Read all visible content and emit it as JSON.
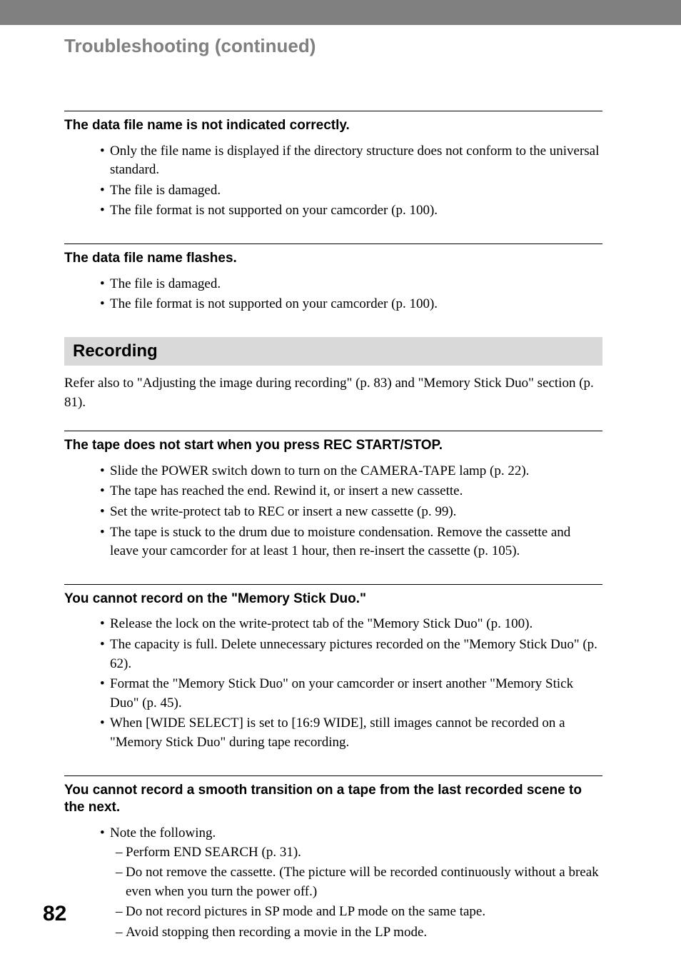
{
  "colors": {
    "topbar": "#808080",
    "chapter_title": "#808080",
    "section_bg": "#d9d9d9",
    "text": "#000000",
    "page_bg": "#ffffff"
  },
  "typography": {
    "body_font": "Times New Roman",
    "heading_font": "Arial",
    "chapter_title_size": 26,
    "section_header_size": 24,
    "issue_title_size": 19,
    "body_size": 19,
    "page_number_size": 30
  },
  "chapter_title": "Troubleshooting (continued)",
  "issues_top": [
    {
      "title": "The data file name is not indicated correctly.",
      "bullets": [
        "Only the file name is displayed if the directory structure does not conform to the universal standard.",
        "The file is damaged.",
        "The file format is not supported on your camcorder (p. 100)."
      ]
    },
    {
      "title": "The data file name flashes.",
      "bullets": [
        "The file is damaged.",
        "The file format is not supported on your camcorder (p. 100)."
      ]
    }
  ],
  "section": {
    "header": "Recording",
    "intro": "Refer also to \"Adjusting the image during recording\" (p. 83) and \"Memory Stick Duo\" section (p. 81)."
  },
  "issues_section": [
    {
      "title": "The tape does not start when you press REC START/STOP.",
      "bullets": [
        "Slide the POWER switch down to turn on the CAMERA-TAPE lamp (p. 22).",
        "The tape has reached the end. Rewind it, or insert a new cassette.",
        "Set the write-protect tab to REC or insert a new cassette (p. 99).",
        "The tape is stuck to the drum due to moisture condensation. Remove the cassette and leave your camcorder for at least 1 hour, then re-insert the cassette (p. 105)."
      ]
    },
    {
      "title": "You cannot record on the \"Memory Stick Duo.\"",
      "bullets": [
        "Release the lock on the write-protect tab of the \"Memory Stick Duo\" (p. 100).",
        "The capacity is full. Delete unnecessary pictures recorded on the \"Memory Stick Duo\" (p. 62).",
        "Format the \"Memory Stick Duo\" on your camcorder or insert another \"Memory Stick Duo\" (p. 45).",
        "When [WIDE SELECT] is set to [16:9 WIDE], still images cannot be recorded on a \"Memory Stick Duo\" during tape recording."
      ]
    },
    {
      "title": "You cannot record a smooth transition on a tape from the last recorded scene to the next.",
      "bullets": [
        "Note the following."
      ],
      "sub": [
        "Perform END SEARCH (p. 31).",
        "Do not remove the cassette. (The picture will be recorded continuously without a break even when you turn the power off.)",
        "Do not record pictures in SP mode and LP mode on the same tape.",
        "Avoid stopping then recording a movie in the LP mode."
      ]
    }
  ],
  "page_number": "82"
}
